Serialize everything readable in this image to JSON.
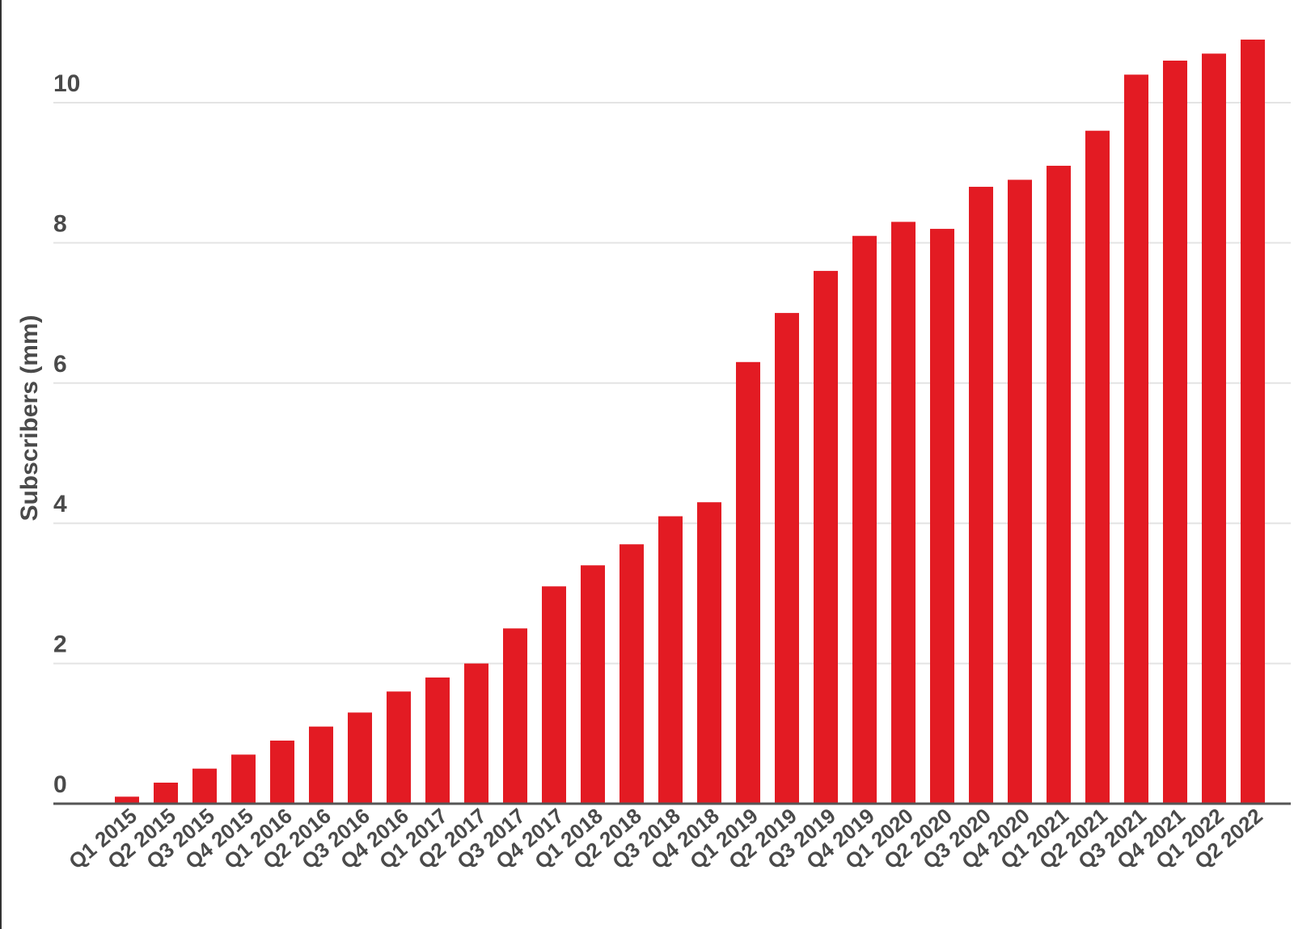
{
  "chart_data": {
    "type": "bar",
    "title": "",
    "xlabel": "",
    "ylabel": "Subscribers (mm)",
    "ylim": [
      0,
      11
    ],
    "yticks": [
      0,
      2,
      4,
      6,
      8,
      10
    ],
    "grid": true,
    "legend": "none",
    "bar_color": "#e31b23",
    "categories": [
      "Q1 2015",
      "Q2 2015",
      "Q3 2015",
      "Q4 2015",
      "Q1 2016",
      "Q2 2016",
      "Q3 2016",
      "Q4 2016",
      "Q1 2017",
      "Q2 2017",
      "Q3 2017",
      "Q4 2017",
      "Q1 2018",
      "Q2 2018",
      "Q3 2018",
      "Q4 2018",
      "Q1 2019",
      "Q2 2019",
      "Q3 2019",
      "Q4 2019",
      "Q1 2020",
      "Q2 2020",
      "Q3 2020",
      "Q4 2020",
      "Q1 2021",
      "Q2 2021",
      "Q3 2021",
      "Q4 2021",
      "Q1 2022",
      "Q2 2022"
    ],
    "values": [
      0.1,
      0.3,
      0.5,
      0.7,
      0.9,
      1.1,
      1.3,
      1.6,
      1.8,
      2.0,
      2.5,
      3.1,
      3.4,
      3.7,
      4.1,
      4.3,
      6.3,
      7.0,
      7.6,
      8.1,
      8.3,
      8.2,
      8.8,
      8.9,
      9.1,
      9.6,
      10.4,
      10.6,
      10.7,
      10.9
    ]
  }
}
